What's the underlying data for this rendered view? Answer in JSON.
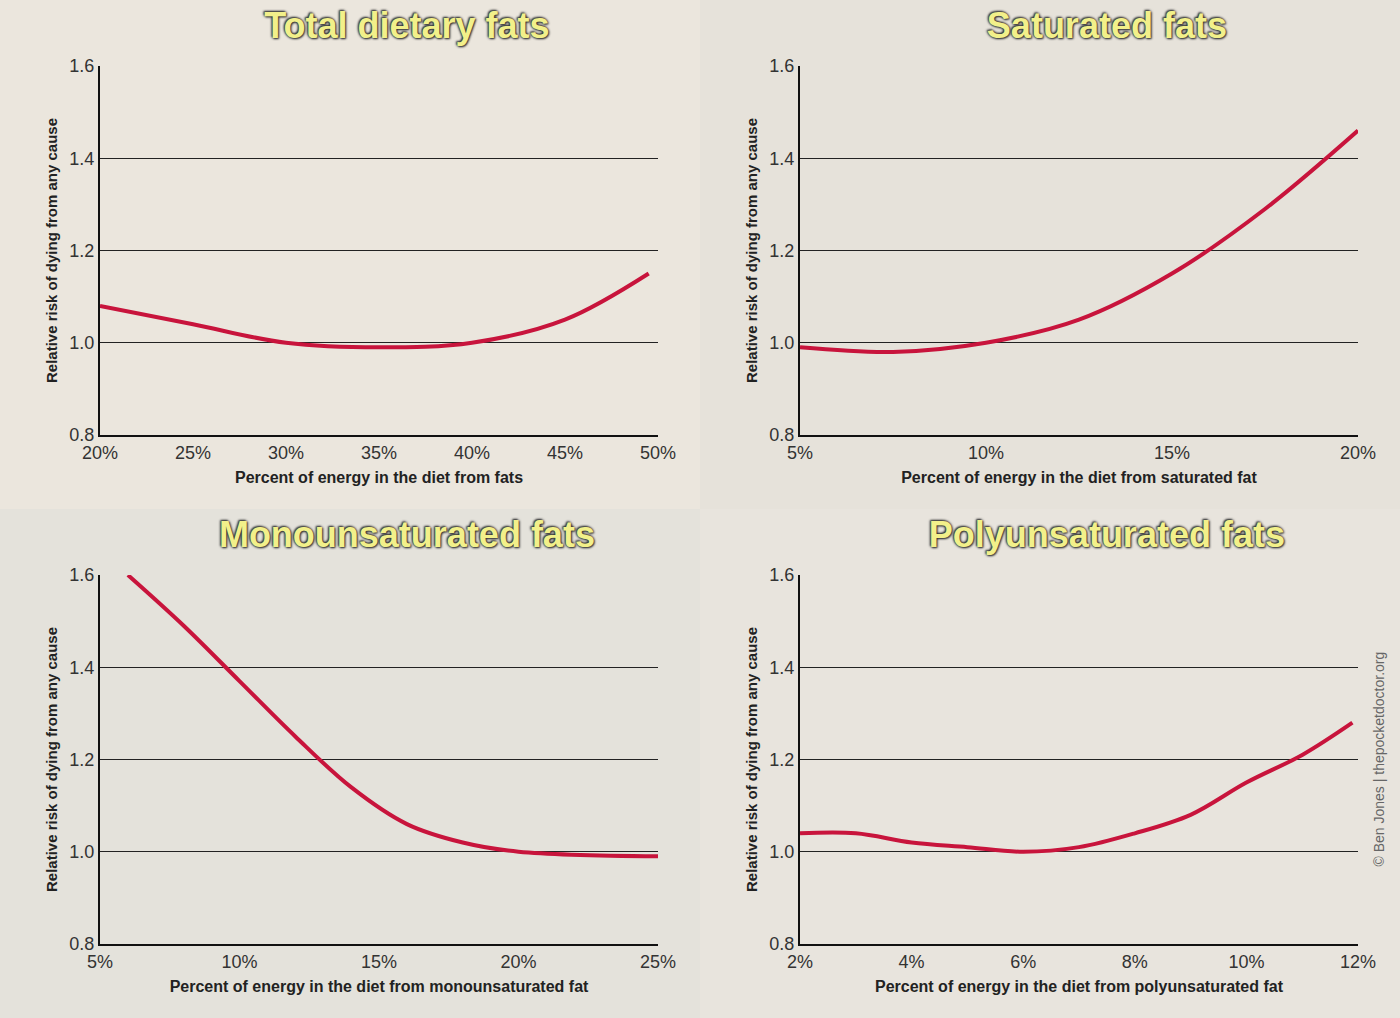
{
  "chart_data": [
    {
      "type": "line",
      "title": "Total dietary fats",
      "x_label": "Percent of energy in the diet from fats",
      "y_label": "Relative risk of dying from any cause",
      "x": [
        20,
        25,
        30,
        35,
        40,
        45,
        49.5
      ],
      "values": [
        1.08,
        1.04,
        1.0,
        0.99,
        1.0,
        1.05,
        1.15
      ],
      "color": "#c8143c",
      "xlim": [
        20,
        50
      ],
      "ylim": [
        0.8,
        1.6
      ],
      "xticks": [
        {
          "value": 20,
          "label": "20%"
        },
        {
          "value": 25,
          "label": "25%"
        },
        {
          "value": 30,
          "label": "30%"
        },
        {
          "value": 35,
          "label": "35%"
        },
        {
          "value": 40,
          "label": "40%"
        },
        {
          "value": 45,
          "label": "45%"
        },
        {
          "value": 50,
          "label": "50%"
        }
      ],
      "yticks": [
        0.8,
        {
          "value": 1.0,
          "label": "1.0"
        },
        1.2,
        1.4,
        1.6
      ],
      "grid": true
    },
    {
      "type": "line",
      "title": "Saturated fats",
      "x_label": "Percent of energy in the diet from saturated fat",
      "y_label": "Relative risk of dying from any cause",
      "x": [
        5,
        7.5,
        10,
        12.5,
        15,
        17.5,
        20
      ],
      "values": [
        0.99,
        0.98,
        1.0,
        1.05,
        1.15,
        1.29,
        1.46
      ],
      "color": "#c8143c",
      "xlim": [
        5,
        20
      ],
      "ylim": [
        0.8,
        1.6
      ],
      "xticks": [
        {
          "value": 5,
          "label": "5%"
        },
        {
          "value": 10,
          "label": "10%"
        },
        {
          "value": 15,
          "label": "15%"
        },
        {
          "value": 20,
          "label": "20%"
        }
      ],
      "yticks": [
        0.8,
        {
          "value": 1.0,
          "label": "1.0"
        },
        1.2,
        1.4,
        1.6
      ],
      "grid": true
    },
    {
      "type": "line",
      "title": "Monounsaturated fats",
      "x_label": "Percent of energy in the diet from monounsaturated fat",
      "y_label": "Relative risk of dying from any cause",
      "x": [
        6,
        8,
        10,
        12,
        14,
        16,
        18,
        20,
        25
      ],
      "values": [
        1.6,
        1.49,
        1.37,
        1.25,
        1.14,
        1.06,
        1.02,
        1.0,
        0.99
      ],
      "color": "#c8143c",
      "xlim": [
        5,
        25
      ],
      "ylim": [
        0.8,
        1.6
      ],
      "xticks": [
        {
          "value": 5,
          "label": "5%"
        },
        {
          "value": 10,
          "label": "10%"
        },
        {
          "value": 15,
          "label": "15%"
        },
        {
          "value": 20,
          "label": "20%"
        },
        {
          "value": 25,
          "label": "25%"
        }
      ],
      "yticks": [
        0.8,
        {
          "value": 1.0,
          "label": "1.0"
        },
        1.2,
        1.4,
        1.6
      ],
      "grid": true
    },
    {
      "type": "line",
      "title": "Polyunsaturated fats",
      "x_label": "Percent of energy in the diet from polyunsaturated fat",
      "y_label": "Relative risk of dying from any cause",
      "x": [
        2,
        3,
        4,
        5,
        6,
        7,
        8,
        9,
        10,
        11,
        11.9
      ],
      "values": [
        1.04,
        1.04,
        1.02,
        1.01,
        1.0,
        1.01,
        1.04,
        1.08,
        1.15,
        1.21,
        1.28
      ],
      "color": "#c8143c",
      "xlim": [
        2,
        12
      ],
      "ylim": [
        0.8,
        1.6
      ],
      "xticks": [
        {
          "value": 2,
          "label": "2%"
        },
        {
          "value": 4,
          "label": "4%"
        },
        {
          "value": 6,
          "label": "6%"
        },
        {
          "value": 8,
          "label": "8%"
        },
        {
          "value": 10,
          "label": "10%"
        },
        {
          "value": 12,
          "label": "12%"
        }
      ],
      "yticks": [
        0.8,
        {
          "value": 1.0,
          "label": "1.0"
        },
        1.2,
        1.4,
        1.6
      ],
      "grid": true,
      "annotations": [
        {
          "text": "© Ben Jones | thepocketdoctor.org"
        }
      ]
    }
  ]
}
